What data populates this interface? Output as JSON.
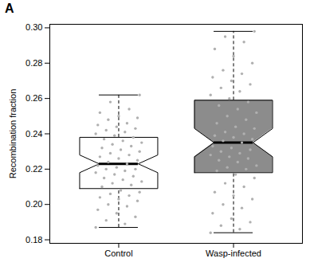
{
  "chart_data": {
    "type": "box",
    "panel_label": "A",
    "y_label": "Recombination fraction",
    "categories": [
      "Control",
      "Wasp-infected"
    ],
    "colors": [
      "#ffffff",
      "#8c8c8c"
    ],
    "ylim": [
      0.178,
      0.302
    ],
    "yticks": [
      0.18,
      {
        "value": 0.2,
        "label": "0.20"
      },
      0.22,
      0.24,
      0.26,
      0.28,
      {
        "value": 0.3,
        "label": "0.30"
      }
    ],
    "grid": false,
    "boxes": [
      {
        "whisker_low": 0.187,
        "q1": 0.209,
        "median": 0.223,
        "q3": 0.238,
        "whisker_high": 0.262,
        "notch_low": 0.218,
        "notch_high": 0.228
      },
      {
        "whisker_low": 0.184,
        "q1": 0.218,
        "median": 0.235,
        "q3": 0.259,
        "whisker_high": 0.298,
        "notch_low": 0.227,
        "notch_high": 0.243
      }
    ],
    "points": [
      [
        0.187,
        0.189,
        0.191,
        0.193,
        0.195,
        0.197,
        0.199,
        0.2,
        0.202,
        0.203,
        0.204,
        0.205,
        0.206,
        0.207,
        0.208,
        0.21,
        0.211,
        0.212,
        0.213,
        0.214,
        0.215,
        0.216,
        0.217,
        0.218,
        0.219,
        0.22,
        0.22,
        0.221,
        0.222,
        0.223,
        0.224,
        0.225,
        0.226,
        0.227,
        0.228,
        0.229,
        0.23,
        0.231,
        0.232,
        0.233,
        0.234,
        0.235,
        0.236,
        0.237,
        0.238,
        0.239,
        0.24,
        0.241,
        0.242,
        0.243,
        0.244,
        0.245,
        0.246,
        0.248,
        0.249,
        0.25,
        0.252,
        0.254,
        0.258,
        0.262
      ],
      [
        0.184,
        0.186,
        0.188,
        0.19,
        0.192,
        0.195,
        0.198,
        0.2,
        0.203,
        0.205,
        0.207,
        0.21,
        0.212,
        0.215,
        0.217,
        0.219,
        0.22,
        0.221,
        0.222,
        0.224,
        0.225,
        0.226,
        0.227,
        0.228,
        0.229,
        0.23,
        0.231,
        0.232,
        0.233,
        0.235,
        0.236,
        0.237,
        0.238,
        0.239,
        0.24,
        0.241,
        0.243,
        0.244,
        0.246,
        0.248,
        0.25,
        0.252,
        0.254,
        0.256,
        0.258,
        0.26,
        0.262,
        0.264,
        0.266,
        0.268,
        0.27,
        0.272,
        0.274,
        0.276,
        0.28,
        0.284,
        0.288,
        0.292,
        0.295,
        0.298
      ]
    ]
  }
}
